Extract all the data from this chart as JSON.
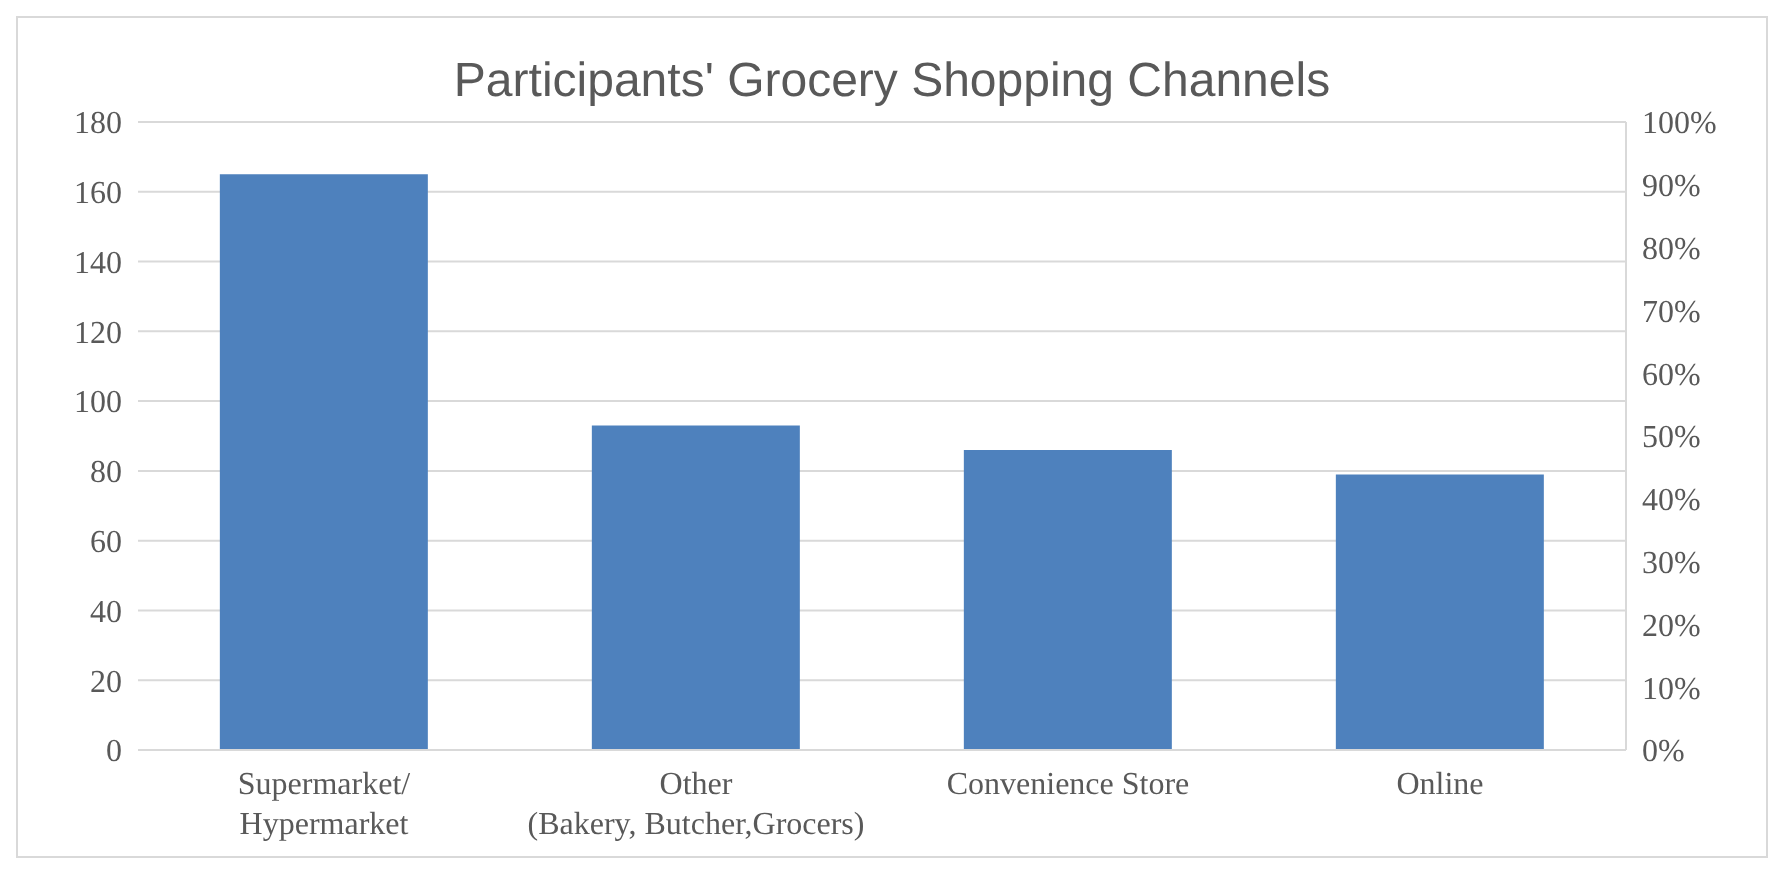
{
  "chart_data": {
    "type": "bar",
    "title": "Participants' Grocery Shopping Channels",
    "categories": [
      "Supermarket/\nHypermarket",
      "Other\n(Bakery, Butcher,Grocers)",
      "Convenience Store",
      "Online"
    ],
    "values": [
      165,
      93,
      86,
      79
    ],
    "color": "#4e81bd",
    "ylim": [
      0,
      180
    ],
    "yticks": [
      0,
      20,
      40,
      60,
      80,
      100,
      120,
      140,
      160,
      180
    ],
    "y2lim": [
      0,
      100
    ],
    "y2ticks": [
      {
        "value": 0,
        "label": "0%"
      },
      {
        "value": 10,
        "label": "10%"
      },
      {
        "value": 20,
        "label": "20%"
      },
      {
        "value": 30,
        "label": "30%"
      },
      {
        "value": 40,
        "label": "40%"
      },
      {
        "value": 50,
        "label": "50%"
      },
      {
        "value": 60,
        "label": "60%"
      },
      {
        "value": 70,
        "label": "70%"
      },
      {
        "value": 80,
        "label": "80%"
      },
      {
        "value": 90,
        "label": "90%"
      },
      {
        "value": 100,
        "label": "100%"
      }
    ],
    "grid": "y",
    "legend": false
  }
}
